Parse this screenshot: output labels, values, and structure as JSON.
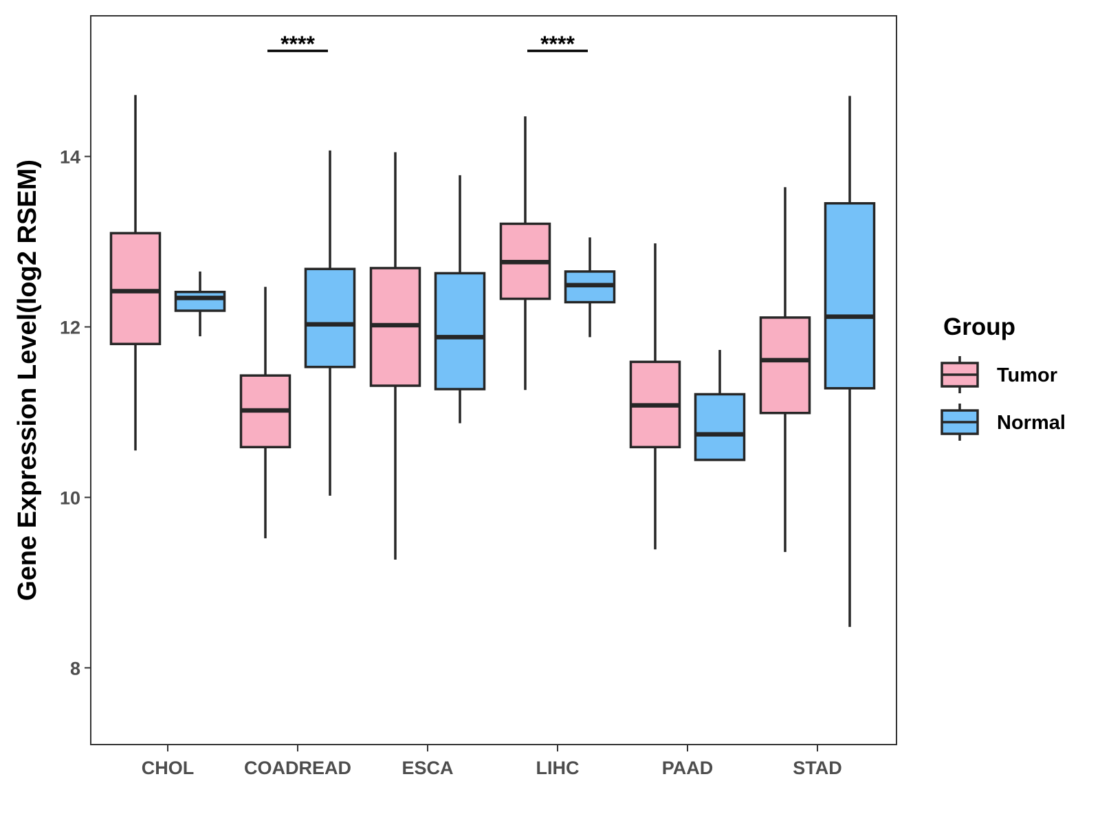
{
  "chart_data": {
    "type": "box",
    "title": "",
    "xlabel": "",
    "ylabel": "Gene Expression Level(log2 RSEM)",
    "ylim": [
      7.1,
      15.65
    ],
    "yticks": [
      8,
      10,
      12,
      14
    ],
    "categories": [
      "CHOL",
      "COADREAD",
      "ESCA",
      "LIHC",
      "PAAD",
      "STAD"
    ],
    "legend": {
      "title": "Group",
      "position": "right",
      "entries": [
        {
          "name": "Tumor",
          "color": "#f9afc2"
        },
        {
          "name": "Normal",
          "color": "#75c1f8"
        }
      ]
    },
    "series": [
      {
        "name": "Tumor",
        "color": "#f9afc2",
        "boxes": [
          {
            "category": "CHOL",
            "min": 10.55,
            "q1": 11.8,
            "median": 12.42,
            "q3": 13.1,
            "max": 14.72
          },
          {
            "category": "COADREAD",
            "min": 9.52,
            "q1": 10.59,
            "median": 11.02,
            "q3": 11.43,
            "max": 12.47
          },
          {
            "category": "ESCA",
            "min": 9.27,
            "q1": 11.31,
            "median": 12.02,
            "q3": 12.69,
            "max": 14.05
          },
          {
            "category": "LIHC",
            "min": 11.26,
            "q1": 12.33,
            "median": 12.76,
            "q3": 13.21,
            "max": 14.47
          },
          {
            "category": "PAAD",
            "min": 9.39,
            "q1": 10.59,
            "median": 11.08,
            "q3": 11.59,
            "max": 12.98
          },
          {
            "category": "STAD",
            "min": 9.36,
            "q1": 10.99,
            "median": 11.61,
            "q3": 12.11,
            "max": 13.64
          }
        ]
      },
      {
        "name": "Normal",
        "color": "#75c1f8",
        "boxes": [
          {
            "category": "CHOL",
            "min": 11.89,
            "q1": 12.19,
            "median": 12.34,
            "q3": 12.41,
            "max": 12.65
          },
          {
            "category": "COADREAD",
            "min": 10.02,
            "q1": 11.53,
            "median": 12.03,
            "q3": 12.68,
            "max": 14.07
          },
          {
            "category": "ESCA",
            "min": 10.87,
            "q1": 11.27,
            "median": 11.88,
            "q3": 12.63,
            "max": 13.78
          },
          {
            "category": "LIHC",
            "min": 11.88,
            "q1": 12.29,
            "median": 12.49,
            "q3": 12.65,
            "max": 13.05
          },
          {
            "category": "PAAD",
            "min": 10.44,
            "q1": 10.44,
            "median": 10.74,
            "q3": 11.21,
            "max": 11.73
          },
          {
            "category": "STAD",
            "min": 8.48,
            "q1": 11.28,
            "median": 12.12,
            "q3": 13.45,
            "max": 14.71
          }
        ]
      }
    ],
    "annotations": [
      {
        "category": "COADREAD",
        "label": "****"
      },
      {
        "category": "LIHC",
        "label": "****"
      }
    ]
  }
}
